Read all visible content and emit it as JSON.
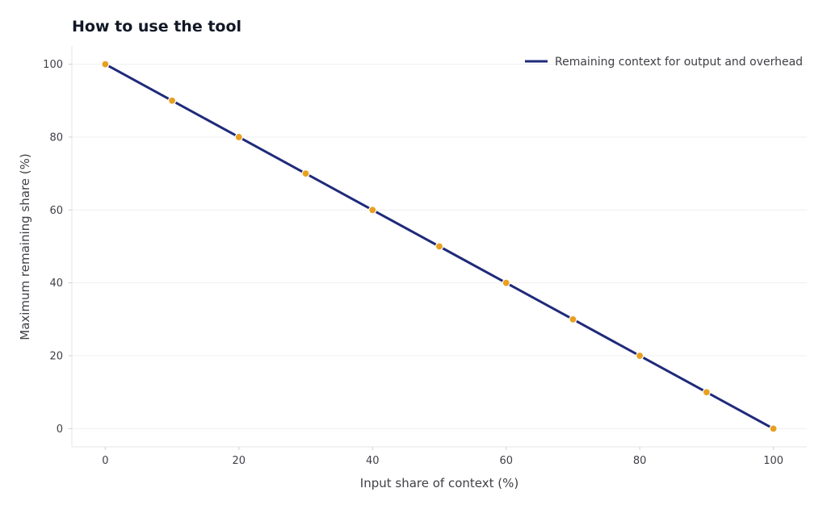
{
  "chart_data": {
    "type": "line",
    "title": "How to use the tool",
    "xlabel": "Input share of context (%)",
    "ylabel": "Maximum remaining share (%)",
    "xlim": [
      -5,
      105
    ],
    "ylim": [
      -5,
      105
    ],
    "xticks": [
      0,
      20,
      40,
      60,
      80,
      100
    ],
    "yticks": [
      0,
      20,
      40,
      60,
      80,
      100
    ],
    "grid": "horizontal",
    "legend_position": "top-right",
    "x": [
      0,
      10,
      20,
      30,
      40,
      50,
      60,
      70,
      80,
      90,
      100
    ],
    "series": [
      {
        "name": "Remaining context for output and overhead",
        "values": [
          100,
          90,
          80,
          70,
          60,
          50,
          40,
          30,
          20,
          10,
          0
        ],
        "line_color": "#1f2a7a",
        "marker_color": "#e8a020"
      }
    ]
  }
}
